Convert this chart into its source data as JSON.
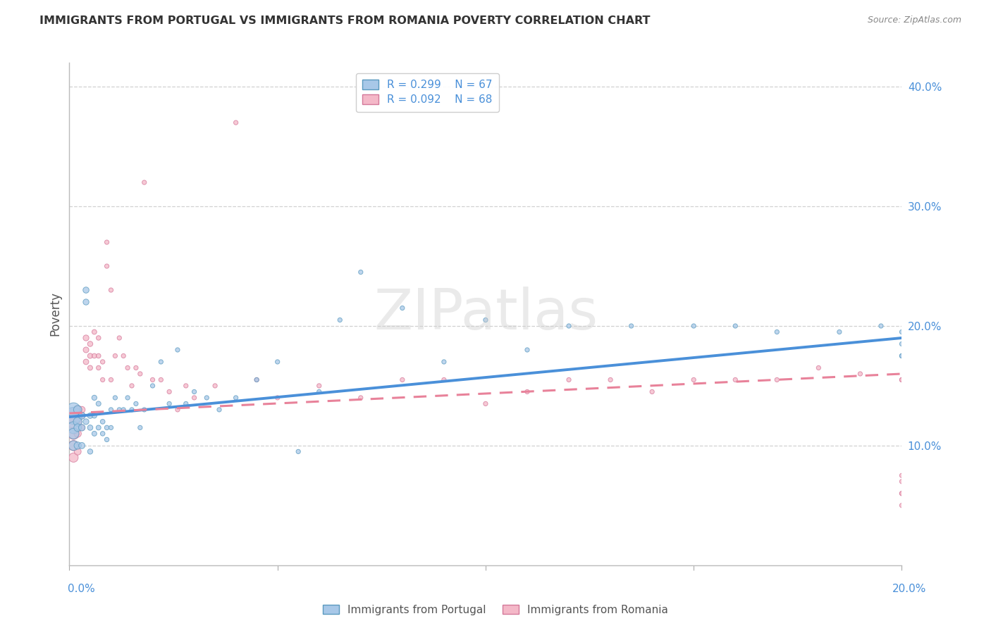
{
  "title": "IMMIGRANTS FROM PORTUGAL VS IMMIGRANTS FROM ROMANIA POVERTY CORRELATION CHART",
  "source": "Source: ZipAtlas.com",
  "ylabel": "Poverty",
  "xlim": [
    0.0,
    0.2
  ],
  "ylim": [
    0.0,
    0.42
  ],
  "portugal_R": 0.299,
  "portugal_N": 67,
  "romania_R": 0.092,
  "romania_N": 68,
  "color_portugal": "#a8c8e8",
  "color_romania": "#f4b8c8",
  "color_portugal_line": "#4a90d9",
  "color_romania_line": "#e8829a",
  "legend_label_portugal": "Immigrants from Portugal",
  "legend_label_romania": "Immigrants from Romania",
  "watermark": "ZIPatlas",
  "trend_port_x0": 0.0,
  "trend_port_y0": 0.124,
  "trend_port_x1": 0.2,
  "trend_port_y1": 0.19,
  "trend_rom_x0": 0.0,
  "trend_rom_y0": 0.127,
  "trend_rom_x1": 0.2,
  "trend_rom_y1": 0.16,
  "port_x": [
    0.001,
    0.001,
    0.001,
    0.001,
    0.001,
    0.002,
    0.002,
    0.002,
    0.002,
    0.003,
    0.003,
    0.003,
    0.004,
    0.004,
    0.004,
    0.005,
    0.005,
    0.005,
    0.006,
    0.006,
    0.006,
    0.007,
    0.007,
    0.008,
    0.008,
    0.009,
    0.009,
    0.01,
    0.01,
    0.011,
    0.012,
    0.013,
    0.014,
    0.015,
    0.016,
    0.017,
    0.018,
    0.02,
    0.022,
    0.024,
    0.026,
    0.028,
    0.03,
    0.033,
    0.036,
    0.04,
    0.045,
    0.05,
    0.055,
    0.06,
    0.065,
    0.07,
    0.08,
    0.09,
    0.1,
    0.11,
    0.12,
    0.135,
    0.15,
    0.16,
    0.17,
    0.185,
    0.195,
    0.2,
    0.2,
    0.2,
    0.2
  ],
  "port_y": [
    0.125,
    0.13,
    0.115,
    0.11,
    0.1,
    0.12,
    0.13,
    0.115,
    0.1,
    0.125,
    0.115,
    0.1,
    0.23,
    0.22,
    0.12,
    0.125,
    0.115,
    0.095,
    0.14,
    0.125,
    0.11,
    0.135,
    0.115,
    0.12,
    0.11,
    0.115,
    0.105,
    0.13,
    0.115,
    0.14,
    0.13,
    0.13,
    0.14,
    0.13,
    0.135,
    0.115,
    0.13,
    0.15,
    0.17,
    0.135,
    0.18,
    0.135,
    0.145,
    0.14,
    0.13,
    0.14,
    0.155,
    0.17,
    0.095,
    0.145,
    0.205,
    0.245,
    0.215,
    0.17,
    0.205,
    0.18,
    0.2,
    0.2,
    0.2,
    0.2,
    0.195,
    0.195,
    0.2,
    0.185,
    0.175,
    0.175,
    0.195
  ],
  "port_sizes": [
    300,
    200,
    150,
    120,
    100,
    80,
    70,
    60,
    55,
    50,
    45,
    40,
    38,
    36,
    34,
    32,
    30,
    28,
    27,
    26,
    25,
    25,
    24,
    23,
    22,
    22,
    21,
    20,
    20,
    20,
    20,
    20,
    20,
    20,
    20,
    20,
    20,
    20,
    20,
    20,
    20,
    20,
    20,
    20,
    20,
    20,
    20,
    20,
    20,
    20,
    20,
    20,
    20,
    20,
    20,
    20,
    20,
    20,
    20,
    20,
    20,
    20,
    20,
    20,
    20,
    20,
    20
  ],
  "rom_x": [
    0.001,
    0.001,
    0.001,
    0.001,
    0.001,
    0.002,
    0.002,
    0.002,
    0.002,
    0.003,
    0.003,
    0.003,
    0.004,
    0.004,
    0.004,
    0.005,
    0.005,
    0.005,
    0.006,
    0.006,
    0.007,
    0.007,
    0.007,
    0.008,
    0.008,
    0.009,
    0.009,
    0.01,
    0.01,
    0.011,
    0.012,
    0.013,
    0.014,
    0.015,
    0.016,
    0.017,
    0.018,
    0.02,
    0.022,
    0.024,
    0.026,
    0.028,
    0.03,
    0.035,
    0.04,
    0.045,
    0.05,
    0.06,
    0.07,
    0.08,
    0.09,
    0.1,
    0.11,
    0.12,
    0.13,
    0.14,
    0.15,
    0.16,
    0.17,
    0.18,
    0.19,
    0.2,
    0.2,
    0.2,
    0.2,
    0.2,
    0.2,
    0.2
  ],
  "rom_y": [
    0.125,
    0.12,
    0.11,
    0.1,
    0.09,
    0.13,
    0.12,
    0.11,
    0.095,
    0.13,
    0.125,
    0.115,
    0.19,
    0.18,
    0.17,
    0.185,
    0.175,
    0.165,
    0.195,
    0.175,
    0.19,
    0.175,
    0.165,
    0.17,
    0.155,
    0.25,
    0.27,
    0.23,
    0.155,
    0.175,
    0.19,
    0.175,
    0.165,
    0.15,
    0.165,
    0.16,
    0.32,
    0.155,
    0.155,
    0.145,
    0.13,
    0.15,
    0.14,
    0.15,
    0.37,
    0.155,
    0.14,
    0.15,
    0.14,
    0.155,
    0.155,
    0.135,
    0.145,
    0.155,
    0.155,
    0.145,
    0.155,
    0.155,
    0.155,
    0.165,
    0.16,
    0.155,
    0.155,
    0.075,
    0.06,
    0.05,
    0.07,
    0.06
  ],
  "rom_sizes": [
    250,
    180,
    140,
    110,
    90,
    75,
    65,
    55,
    50,
    45,
    42,
    38,
    35,
    33,
    31,
    29,
    27,
    25,
    24,
    23,
    22,
    22,
    21,
    21,
    20,
    20,
    20,
    20,
    20,
    20,
    20,
    20,
    20,
    20,
    20,
    20,
    20,
    20,
    20,
    20,
    20,
    20,
    20,
    20,
    20,
    20,
    20,
    20,
    20,
    20,
    20,
    20,
    20,
    20,
    20,
    20,
    20,
    20,
    20,
    20,
    20,
    20,
    20,
    20,
    20,
    20,
    20,
    20
  ]
}
